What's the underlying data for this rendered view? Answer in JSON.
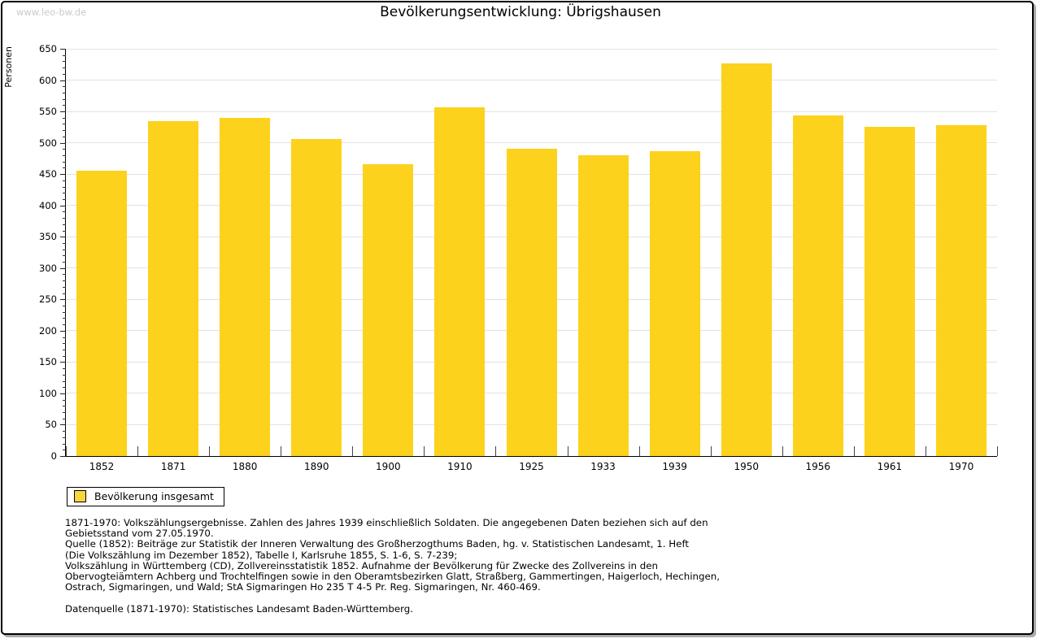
{
  "page": {
    "watermark": "www.leo-bw.de",
    "title": "Bevölkerungsentwicklung: Übrigshausen"
  },
  "chart_data": {
    "type": "bar",
    "title": "Bevölkerungsentwicklung: Übrigshausen",
    "xlabel": "",
    "ylabel": "Personen",
    "ylim": [
      0,
      650
    ],
    "ytick_step": 50,
    "minor_tick_step": 10,
    "grid": true,
    "bar_color": "#FCD21C",
    "categories": [
      "1852",
      "1871",
      "1880",
      "1890",
      "1900",
      "1910",
      "1925",
      "1933",
      "1939",
      "1950",
      "1956",
      "1961",
      "1970"
    ],
    "values": [
      456,
      535,
      540,
      506,
      466,
      556,
      491,
      480,
      486,
      627,
      544,
      526,
      528
    ],
    "series_name": "Bevölkerung insgesamt",
    "legend_position": "bottom-left"
  },
  "legend": {
    "label": "Bevölkerung insgesamt",
    "swatch_color": "#FBD43F"
  },
  "footnotes": {
    "lines": [
      "1871-1970: Volkszählungsergebnisse. Zahlen des Jahres 1939 einschließlich Soldaten. Die angegebenen Daten beziehen sich auf den",
      "Gebietsstand vom 27.05.1970.",
      "Quelle (1852): Beiträge zur Statistik der Inneren Verwaltung des Großherzogthums Baden, hg. v. Statistischen Landesamt, 1. Heft",
      "(Die Volkszählung im Dezember 1852), Tabelle I, Karlsruhe 1855, S. 1-6, S. 7-239;",
      "Volkszählung in Württemberg (CD), Zollvereinsstatistik 1852. Aufnahme der Bevölkerung für Zwecke des Zollvereins in den",
      "Obervogteiämtern Achberg und Trochtelfingen sowie in den Oberamtsbezirken Glatt, Straßberg, Gammertingen, Haigerloch, Hechingen,",
      "Ostrach, Sigmaringen, und Wald; StA Sigmaringen Ho 235 T 4-5 Pr. Reg. Sigmaringen, Nr. 460-469."
    ],
    "datasource": "Datenquelle (1871-1970): Statistisches Landesamt Baden-Württemberg."
  }
}
